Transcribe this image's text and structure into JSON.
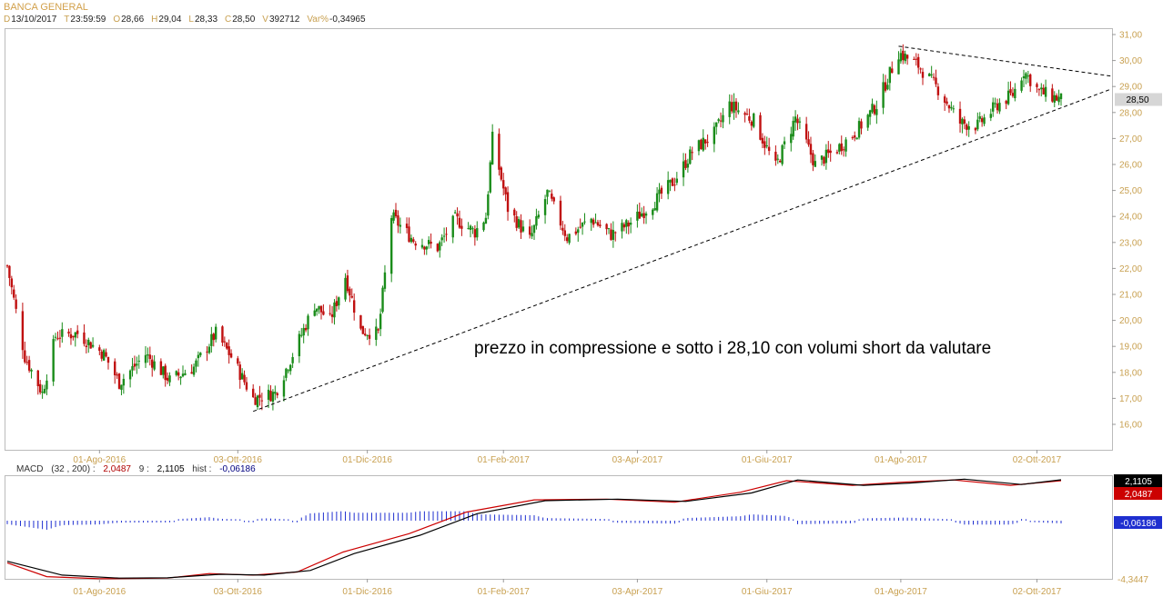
{
  "header": {
    "title": "BANCA GENERAL",
    "quote": [
      {
        "k": "D",
        "v": "13/10/2017"
      },
      {
        "k": "T",
        "v": "23:59:59"
      },
      {
        "k": "O",
        "v": "28,66"
      },
      {
        "k": "H",
        "v": "29,04"
      },
      {
        "k": "L",
        "v": "28,33"
      },
      {
        "k": "C",
        "v": "28,50"
      },
      {
        "k": "V",
        "v": "392712"
      },
      {
        "k": "Var%",
        "v": "-0,34965"
      }
    ]
  },
  "macd_header": {
    "label": "MACD",
    "params": "(32 , 200) :",
    "macd_value": "2,0487",
    "signal_label": "9 :",
    "signal_value": "2,1105",
    "hist_label": "hist :",
    "hist_value": "-0,06186"
  },
  "annotation": "prezzo in compressione e sotto i 28,10 con volumi short da valutare",
  "chart_data": [
    {
      "type": "candlestick",
      "title": "BANCA GENERAL",
      "ylim": [
        15.5,
        31.2
      ],
      "y_ticks": [
        "31,00",
        "30,00",
        "29,00",
        "28,00",
        "27,00",
        "26,00",
        "25,00",
        "24,00",
        "23,00",
        "22,00",
        "21,00",
        "20,00",
        "19,00",
        "18,00",
        "17,00",
        "16,00"
      ],
      "y_tick_values": [
        31,
        30,
        29,
        28,
        27,
        26,
        25,
        24,
        23,
        22,
        21,
        20,
        19,
        18,
        17,
        16
      ],
      "x_ticks": [
        "01-Ago-2016",
        "03-Ott-2016",
        "01-Dic-2016",
        "01-Feb-2017",
        "03-Apr-2017",
        "01-Giu-2017",
        "01-Ago-2017",
        "02-Ott-2017"
      ],
      "last_price_label": "28,50",
      "last_price": 28.5,
      "close_path": [
        [
          "2016-06-20",
          22.1
        ],
        [
          "2016-06-28",
          18.6
        ],
        [
          "2016-07-06",
          17.2
        ],
        [
          "2016-07-12",
          19.4
        ],
        [
          "2016-07-22",
          19.5
        ],
        [
          "2016-08-03",
          18.7
        ],
        [
          "2016-08-10",
          17.6
        ],
        [
          "2016-08-22",
          18.7
        ],
        [
          "2016-09-02",
          17.7
        ],
        [
          "2016-09-13",
          18.2
        ],
        [
          "2016-09-23",
          19.5
        ],
        [
          "2016-09-30",
          18.6
        ],
        [
          "2016-10-10",
          17.0
        ],
        [
          "2016-10-20",
          17.2
        ],
        [
          "2016-10-27",
          18.5
        ],
        [
          "2016-11-07",
          20.6
        ],
        [
          "2016-11-14",
          20.0
        ],
        [
          "2016-11-21",
          21.7
        ],
        [
          "2016-11-28",
          19.6
        ],
        [
          "2016-12-06",
          19.5
        ],
        [
          "2016-12-12",
          24.0
        ],
        [
          "2016-12-22",
          23.1
        ],
        [
          "2017-01-02",
          22.8
        ],
        [
          "2017-01-10",
          23.9
        ],
        [
          "2017-01-19",
          23.4
        ],
        [
          "2017-01-24",
          24.0
        ],
        [
          "2017-01-27",
          27.0
        ],
        [
          "2017-02-03",
          24.3
        ],
        [
          "2017-02-13",
          23.1
        ],
        [
          "2017-02-21",
          24.9
        ],
        [
          "2017-03-02",
          23.2
        ],
        [
          "2017-03-13",
          23.9
        ],
        [
          "2017-03-22",
          23.3
        ],
        [
          "2017-03-30",
          23.7
        ],
        [
          "2017-04-10",
          24.5
        ],
        [
          "2017-04-20",
          25.4
        ],
        [
          "2017-04-28",
          26.5
        ],
        [
          "2017-05-08",
          27.2
        ],
        [
          "2017-05-15",
          28.3
        ],
        [
          "2017-05-26",
          27.7
        ],
        [
          "2017-06-05",
          25.9
        ],
        [
          "2017-06-14",
          27.8
        ],
        [
          "2017-06-23",
          26.0
        ],
        [
          "2017-07-03",
          26.6
        ],
        [
          "2017-07-12",
          27.3
        ],
        [
          "2017-07-21",
          28.3
        ],
        [
          "2017-07-31",
          30.3
        ],
        [
          "2017-08-09",
          29.8
        ],
        [
          "2017-08-18",
          28.9
        ],
        [
          "2017-08-28",
          27.6
        ],
        [
          "2017-09-05",
          27.5
        ],
        [
          "2017-09-14",
          28.3
        ],
        [
          "2017-09-21",
          28.7
        ],
        [
          "2017-09-26",
          29.6
        ],
        [
          "2017-10-03",
          28.8
        ],
        [
          "2017-10-13",
          28.5
        ]
      ],
      "trendlines": [
        {
          "style": "dashed",
          "from": [
            "2016-10-10",
            16.5
          ],
          "to": [
            "2017-10-20",
            28.9
          ]
        },
        {
          "style": "dashed",
          "from": [
            "2017-07-31",
            30.55
          ],
          "to": [
            "2017-10-20",
            29.4
          ]
        }
      ]
    },
    {
      "type": "line",
      "title": "MACD",
      "ylim": [
        -4.3447,
        2.1105
      ],
      "y_ticks": [
        "-4,3447"
      ],
      "x_ticks": [
        "01-Ago-2016",
        "03-Ott-2016",
        "01-Dic-2016",
        "01-Feb-2017",
        "03-Apr-2017",
        "01-Giu-2017",
        "01-Ago-2017",
        "02-Ott-2017"
      ],
      "value_labels": [
        "2,1105",
        "2,0487",
        "-0,06186"
      ],
      "series": [
        {
          "name": "MACD",
          "color": "#cc0000",
          "values": [
            [
              "2016-06-20",
              -3.3
            ],
            [
              "2016-07-08",
              -4.2
            ],
            [
              "2016-08-01",
              -4.34
            ],
            [
              "2016-09-01",
              -4.3
            ],
            [
              "2016-09-20",
              -4.0
            ],
            [
              "2016-10-10",
              -4.1
            ],
            [
              "2016-10-30",
              -3.9
            ],
            [
              "2016-11-20",
              -2.6
            ],
            [
              "2016-12-20",
              -1.4
            ],
            [
              "2017-01-15",
              0.0
            ],
            [
              "2017-02-15",
              0.8
            ],
            [
              "2017-03-20",
              0.85
            ],
            [
              "2017-04-20",
              0.65
            ],
            [
              "2017-05-20",
              1.3
            ],
            [
              "2017-06-10",
              2.05
            ],
            [
              "2017-07-10",
              1.75
            ],
            [
              "2017-08-01",
              1.95
            ],
            [
              "2017-08-25",
              2.1
            ],
            [
              "2017-09-20",
              1.75
            ],
            [
              "2017-10-13",
              2.0487
            ]
          ]
        },
        {
          "name": "9",
          "color": "#000000",
          "values": [
            [
              "2016-06-20",
              -3.2
            ],
            [
              "2016-07-15",
              -4.1
            ],
            [
              "2016-08-10",
              -4.3
            ],
            [
              "2016-09-01",
              -4.28
            ],
            [
              "2016-09-25",
              -4.05
            ],
            [
              "2016-10-15",
              -4.1
            ],
            [
              "2016-11-05",
              -3.8
            ],
            [
              "2016-11-25",
              -2.7
            ],
            [
              "2016-12-25",
              -1.5
            ],
            [
              "2017-01-20",
              -0.1
            ],
            [
              "2017-02-20",
              0.75
            ],
            [
              "2017-03-25",
              0.85
            ],
            [
              "2017-04-25",
              0.7
            ],
            [
              "2017-05-25",
              1.25
            ],
            [
              "2017-06-15",
              2.1
            ],
            [
              "2017-07-15",
              1.75
            ],
            [
              "2017-08-05",
              1.9
            ],
            [
              "2017-08-30",
              2.15
            ],
            [
              "2017-09-25",
              1.8
            ],
            [
              "2017-10-13",
              2.1105
            ]
          ]
        },
        {
          "name": "hist",
          "color": "#000080",
          "last": -0.06186
        }
      ]
    }
  ]
}
